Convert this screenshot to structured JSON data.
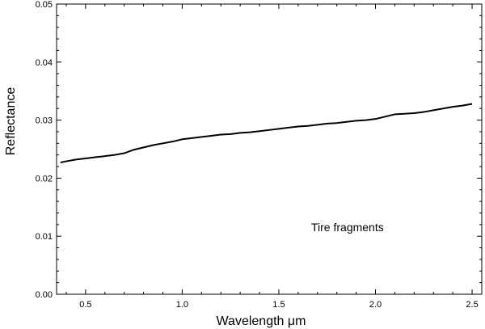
{
  "chart_data": {
    "type": "line",
    "title": "",
    "xlabel": "Wavelength  μm",
    "ylabel": "Reflectance",
    "xlim": [
      0.35,
      2.55
    ],
    "ylim": [
      0.0,
      0.05
    ],
    "xticks": [
      {
        "value": 0.5,
        "label": "0.5"
      },
      {
        "value": 1.0,
        "label": "1.0"
      },
      {
        "value": 1.5,
        "label": "1.5"
      },
      {
        "value": 2.0,
        "label": "2.0"
      },
      {
        "value": 2.5,
        "label": "2.5"
      }
    ],
    "yticks": [
      {
        "value": 0.0,
        "label": "0.00"
      },
      {
        "value": 0.01,
        "label": "0.01"
      },
      {
        "value": 0.02,
        "label": "0.02"
      },
      {
        "value": 0.03,
        "label": "0.03"
      },
      {
        "value": 0.04,
        "label": "0.04"
      },
      {
        "value": 0.05,
        "label": "0.05"
      }
    ],
    "grid": false,
    "annotation": "Tire fragments",
    "series": [
      {
        "color": "#000000",
        "x": [
          0.37,
          0.4,
          0.45,
          0.5,
          0.55,
          0.6,
          0.65,
          0.7,
          0.75,
          0.8,
          0.85,
          0.9,
          0.95,
          1.0,
          1.05,
          1.1,
          1.15,
          1.2,
          1.25,
          1.3,
          1.35,
          1.4,
          1.45,
          1.5,
          1.55,
          1.6,
          1.65,
          1.7,
          1.75,
          1.8,
          1.85,
          1.9,
          1.95,
          2.0,
          2.05,
          2.1,
          2.15,
          2.2,
          2.25,
          2.3,
          2.35,
          2.4,
          2.45,
          2.5
        ],
        "y": [
          0.0227,
          0.0229,
          0.0232,
          0.0234,
          0.0236,
          0.0238,
          0.024,
          0.0243,
          0.0249,
          0.0253,
          0.0257,
          0.026,
          0.0263,
          0.0267,
          0.0269,
          0.0271,
          0.0273,
          0.0275,
          0.0276,
          0.0278,
          0.0279,
          0.0281,
          0.0283,
          0.0285,
          0.0287,
          0.0289,
          0.029,
          0.0292,
          0.0294,
          0.0295,
          0.0297,
          0.0299,
          0.03,
          0.0302,
          0.0306,
          0.031,
          0.0311,
          0.0312,
          0.0314,
          0.0317,
          0.032,
          0.0323,
          0.0325,
          0.0328
        ]
      }
    ]
  }
}
